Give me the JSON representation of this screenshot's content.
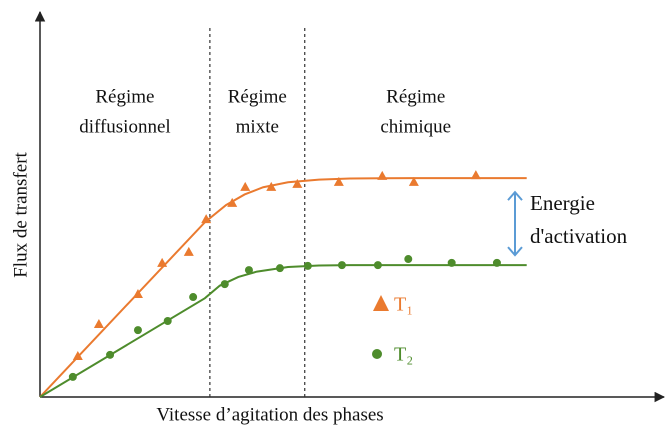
{
  "chart_data": {
    "type": "line",
    "x_label": "Vitesse d’agitation des phases",
    "y_label": "Flux de transfert",
    "xlim": [
      0,
      100
    ],
    "ylim": [
      0,
      100
    ],
    "dividers": [
      27.4,
      42.7
    ],
    "regions": [
      [
        "Régime",
        "diffusionnel"
      ],
      [
        "Régime",
        "mixte"
      ],
      [
        "Régime",
        "chimique"
      ]
    ],
    "annotation": [
      "Energie",
      "d'activation"
    ],
    "annotation_color": "#5b9bd5",
    "series": [
      {
        "name": "T₁",
        "color": "#ea7a2f",
        "marker": "triangle",
        "x": [
          6.1,
          9.5,
          15.8,
          19.7,
          24.0,
          26.8,
          31.0,
          33.1,
          37.3,
          41.5,
          48.2,
          55.2,
          60.3,
          70.3
        ],
        "values": [
          10.8,
          19.2,
          27.1,
          35.3,
          38.2,
          46.8,
          51.1,
          55.3,
          55.3,
          56.1,
          56.6,
          58.2,
          56.6,
          58.4
        ],
        "curve_x": [
          0,
          26.6,
          30,
          33,
          36,
          40,
          45,
          50,
          60,
          78.5
        ],
        "curve_values": [
          0,
          46,
          50.5,
          53.3,
          55.2,
          56.5,
          57.2,
          57.5,
          57.6,
          57.6
        ]
      },
      {
        "name": "T₂",
        "color": "#4e8c2c",
        "marker": "circle",
        "x": [
          5.3,
          11.3,
          15.8,
          20.6,
          24.7,
          29.8,
          33.7,
          38.7,
          43.2,
          48.7,
          54.5,
          59.4,
          66.4,
          73.7
        ],
        "values": [
          5.3,
          11.1,
          17.6,
          20.0,
          26.3,
          29.7,
          33.4,
          33.9,
          34.5,
          34.7,
          34.7,
          36.3,
          35.3,
          35.3
        ],
        "curve_x": [
          0,
          26.6,
          29,
          32,
          35,
          40,
          45,
          50,
          60,
          78.5
        ],
        "curve_values": [
          0,
          26,
          29.3,
          31.6,
          33,
          34.2,
          34.6,
          34.7,
          34.7,
          34.7
        ]
      }
    ]
  }
}
